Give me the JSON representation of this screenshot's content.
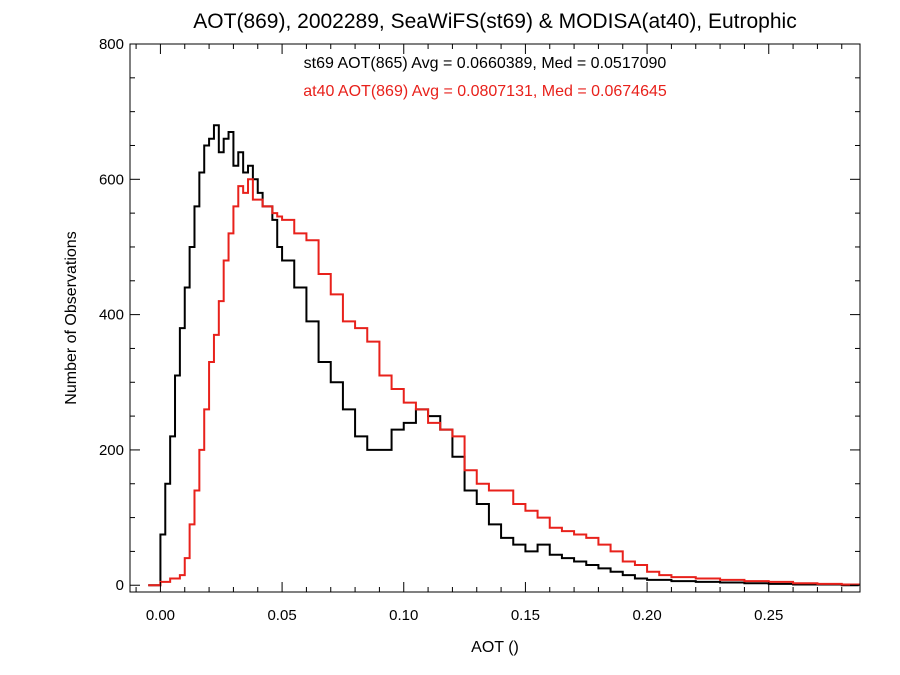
{
  "chart_data": {
    "type": "step-histogram",
    "title": "AOT(869), 2002289, SeaWiFS(st69) & MODISA(at40), Eutrophic",
    "xlabel": "AOT ()",
    "ylabel": "Number of Observations",
    "xlim": [
      -0.0125,
      0.2875
    ],
    "ylim": [
      -10,
      800
    ],
    "xticks": [
      0.0,
      0.05,
      0.1,
      0.15,
      0.2,
      0.25
    ],
    "xtick_labels": [
      "0.00",
      "0.05",
      "0.10",
      "0.15",
      "0.20",
      "0.25"
    ],
    "yticks": [
      0,
      200,
      400,
      600,
      800
    ],
    "ytick_labels": [
      "0",
      "200",
      "400",
      "600",
      "800"
    ],
    "grid": false,
    "series": [
      {
        "name": "st69",
        "color": "#000000",
        "annotation": "st69 AOT(865) Avg = 0.0660389, Med = 0.0517090",
        "x": [
          -0.005,
          0.0,
          0.002,
          0.004,
          0.006,
          0.008,
          0.01,
          0.012,
          0.014,
          0.016,
          0.018,
          0.02,
          0.022,
          0.024,
          0.026,
          0.028,
          0.03,
          0.032,
          0.034,
          0.036,
          0.038,
          0.04,
          0.042,
          0.044,
          0.046,
          0.048,
          0.05,
          0.055,
          0.06,
          0.065,
          0.07,
          0.075,
          0.08,
          0.085,
          0.09,
          0.095,
          0.1,
          0.105,
          0.11,
          0.115,
          0.12,
          0.125,
          0.13,
          0.135,
          0.14,
          0.145,
          0.15,
          0.155,
          0.16,
          0.165,
          0.17,
          0.175,
          0.18,
          0.185,
          0.19,
          0.195,
          0.2,
          0.21,
          0.22,
          0.23,
          0.24,
          0.25,
          0.26,
          0.27,
          0.28,
          0.287
        ],
        "values": [
          0,
          75,
          150,
          220,
          310,
          380,
          440,
          500,
          560,
          610,
          650,
          660,
          680,
          640,
          660,
          670,
          620,
          640,
          610,
          620,
          600,
          580,
          560,
          560,
          540,
          500,
          480,
          440,
          390,
          330,
          300,
          260,
          220,
          200,
          200,
          230,
          240,
          260,
          250,
          230,
          190,
          140,
          120,
          90,
          70,
          60,
          50,
          60,
          45,
          40,
          35,
          30,
          25,
          20,
          15,
          10,
          8,
          6,
          5,
          4,
          3,
          2,
          1,
          1,
          0,
          0
        ]
      },
      {
        "name": "at40",
        "color": "#e8211b",
        "annotation": "at40 AOT(869) Avg = 0.0807131, Med = 0.0674645",
        "x": [
          -0.005,
          0.0,
          0.004,
          0.008,
          0.01,
          0.012,
          0.014,
          0.016,
          0.018,
          0.02,
          0.022,
          0.024,
          0.026,
          0.028,
          0.03,
          0.032,
          0.034,
          0.036,
          0.038,
          0.04,
          0.042,
          0.044,
          0.046,
          0.048,
          0.05,
          0.055,
          0.06,
          0.065,
          0.07,
          0.075,
          0.08,
          0.085,
          0.09,
          0.095,
          0.1,
          0.105,
          0.11,
          0.115,
          0.12,
          0.125,
          0.13,
          0.135,
          0.14,
          0.145,
          0.15,
          0.155,
          0.16,
          0.165,
          0.17,
          0.175,
          0.18,
          0.185,
          0.19,
          0.195,
          0.2,
          0.205,
          0.21,
          0.22,
          0.23,
          0.24,
          0.25,
          0.26,
          0.27,
          0.28,
          0.287
        ],
        "values": [
          0,
          5,
          10,
          15,
          40,
          90,
          140,
          200,
          260,
          330,
          370,
          420,
          480,
          520,
          560,
          590,
          580,
          600,
          570,
          570,
          560,
          560,
          550,
          545,
          540,
          520,
          510,
          460,
          430,
          390,
          380,
          360,
          310,
          290,
          270,
          260,
          240,
          230,
          220,
          170,
          150,
          140,
          140,
          120,
          110,
          100,
          85,
          80,
          75,
          70,
          60,
          50,
          35,
          30,
          20,
          15,
          12,
          10,
          8,
          6,
          5,
          3,
          2,
          1,
          0
        ]
      }
    ]
  }
}
